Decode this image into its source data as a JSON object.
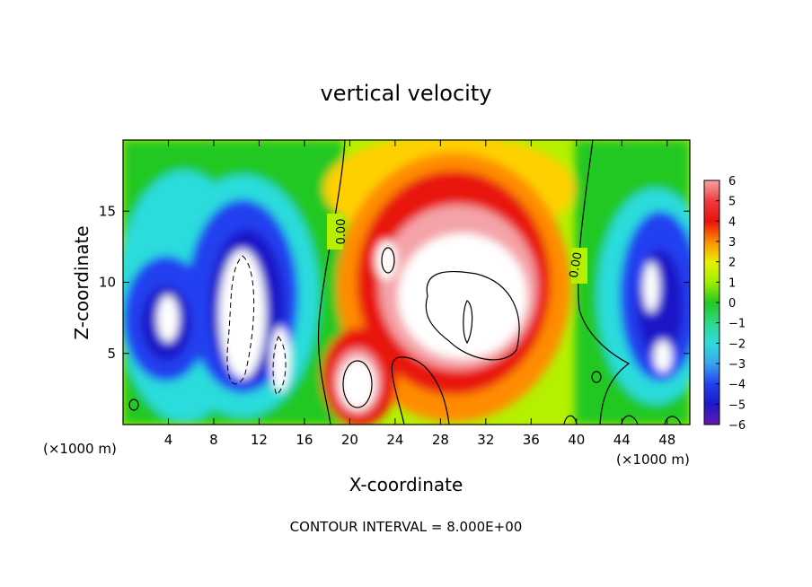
{
  "chart_data": {
    "type": "heatmap",
    "title": "vertical velocity",
    "xlabel": "X-coordinate",
    "ylabel": "Z-coordinate",
    "x_unit": "(×1000 m)",
    "x_ticks": [
      4,
      8,
      12,
      16,
      20,
      24,
      28,
      32,
      36,
      40,
      44,
      48
    ],
    "y_ticks": [
      5,
      10,
      15
    ],
    "xlim": [
      0,
      50
    ],
    "ylim": [
      0,
      20
    ],
    "colorbar": {
      "ticks": [
        6,
        5,
        4,
        3,
        2,
        1,
        0,
        -1,
        -2,
        -3,
        -4,
        -5,
        -6
      ],
      "labels": [
        "6",
        "5",
        "4",
        "3",
        "2",
        "1",
        "0",
        "−1",
        "−2",
        "−3",
        "−4",
        "−5",
        "−6"
      ],
      "range": [
        -6,
        6
      ]
    },
    "contour_labels": [
      "0.00",
      "0.00"
    ],
    "features": [
      {
        "kind": "updraft",
        "x": 30,
        "z": 9,
        "peak": 8
      },
      {
        "kind": "updraft",
        "x": 20,
        "z": 3,
        "peak": 7
      },
      {
        "kind": "downdraft",
        "x": 11.5,
        "z": 8,
        "peak": -7
      },
      {
        "kind": "downdraft",
        "x": 4.5,
        "z": 7.5,
        "peak": -7
      },
      {
        "kind": "downdraft",
        "x": 47,
        "z": 8,
        "peak": -7
      }
    ],
    "footer": "CONTOUR INTERVAL = 8.000E+00"
  },
  "colors": {
    "pos6": "#f4a3a8",
    "pos5": "#f03c3c",
    "pos4": "#e8120c",
    "pos3": "#ff8c00",
    "pos2": "#e6f000",
    "pos1": "#a0ee00",
    "zero": "#22c822",
    "neg1": "#2fd88a",
    "neg2": "#2cdcdc",
    "neg3": "#3aa4ee",
    "neg4": "#2040f0",
    "neg5": "#1a18c8",
    "neg6": "#6a18b0"
  }
}
